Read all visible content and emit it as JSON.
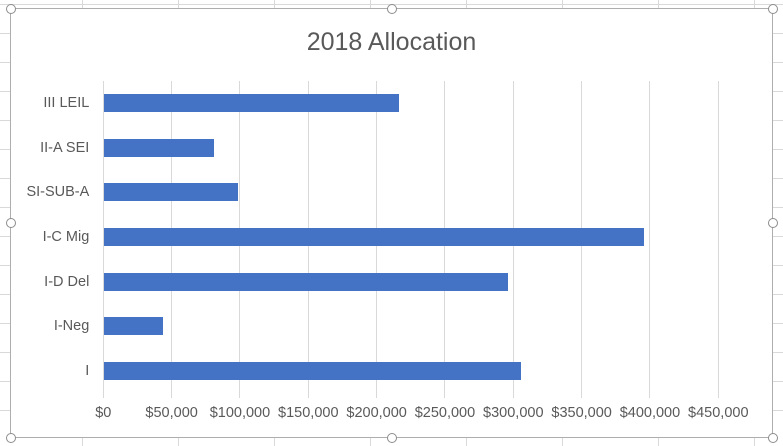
{
  "chart": {
    "state": "selected",
    "selection_handle_count": 8
  },
  "chart_data": {
    "type": "bar",
    "orientation": "horizontal",
    "title": "2018 Allocation",
    "categories": [
      "III LEIL",
      "II-A SEI",
      "SI-SUB-A",
      "I-C Mig",
      "I-D Del",
      "I-Neg",
      "I"
    ],
    "values": [
      216000,
      81000,
      98000,
      395000,
      296000,
      43500,
      305500
    ],
    "xlabel": "",
    "ylabel": "",
    "xlim": [
      0,
      450000
    ],
    "x_tick_values": [
      0,
      50000,
      100000,
      150000,
      200000,
      250000,
      300000,
      350000,
      400000,
      450000
    ],
    "x_tick_labels": [
      "$0",
      "$50,000",
      "$100,000",
      "$150,000",
      "$200,000",
      "$250,000",
      "$300,000",
      "$350,000",
      "$400,000",
      "$450,000"
    ],
    "grid": true,
    "legend": false,
    "bar_color": "#4472c4",
    "gridline_color": "#d9d9d9",
    "text_color": "#595959",
    "title_color": "#595959"
  }
}
